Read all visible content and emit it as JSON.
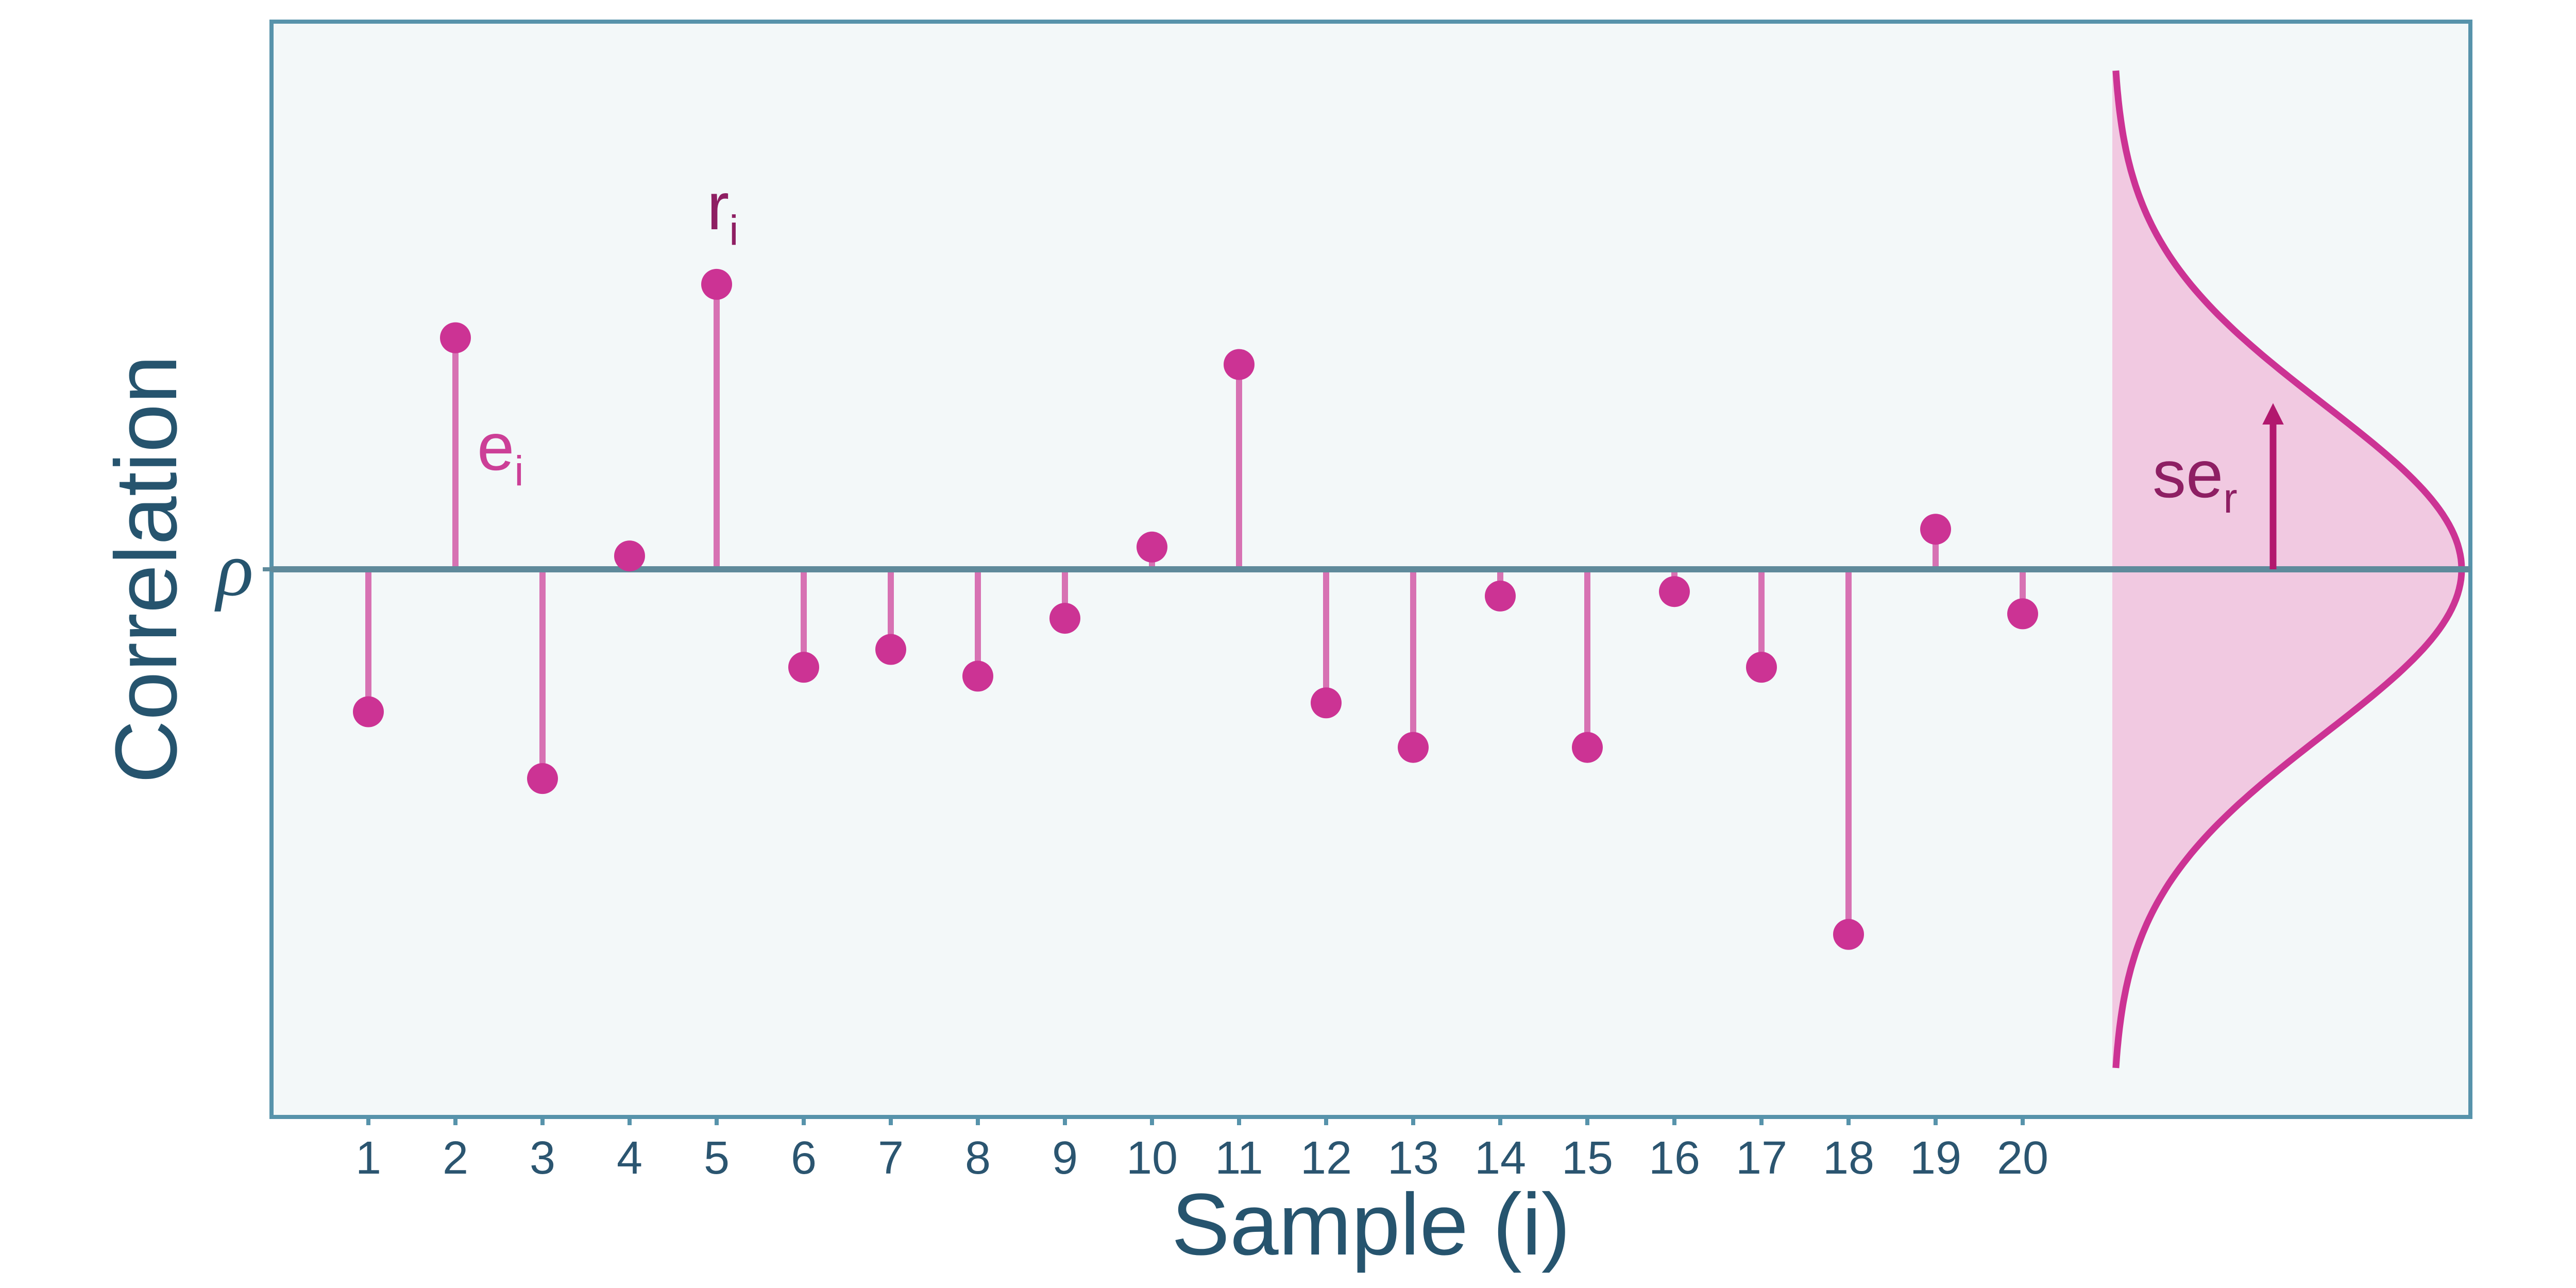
{
  "chart_data": {
    "type": "scatter",
    "style": "lollipop",
    "xlabel": "Sample (i)",
    "ylabel": "Correlation",
    "x_tick_labels": [
      "1",
      "2",
      "3",
      "4",
      "5",
      "6",
      "7",
      "8",
      "9",
      "10",
      "11",
      "12",
      "13",
      "14",
      "15",
      "16",
      "17",
      "18",
      "19",
      "20"
    ],
    "reference_line_label": "ρ",
    "deviations": [
      -0.32,
      0.52,
      -0.47,
      0.03,
      0.64,
      -0.22,
      -0.18,
      -0.24,
      -0.11,
      0.05,
      0.46,
      -0.3,
      -0.4,
      -0.06,
      -0.4,
      -0.05,
      -0.22,
      -0.82,
      0.09,
      -0.1
    ],
    "ylim": [
      -1.23,
      1.23
    ],
    "distribution": {
      "shape": "normal",
      "sd": 0.37,
      "extent": [
        -1.12,
        1.12
      ]
    },
    "annotations": {
      "e": {
        "base": "e",
        "sub": "i"
      },
      "r": {
        "base": "r",
        "sub": "i"
      },
      "se": {
        "base": "se",
        "sub": "r"
      }
    },
    "colors": {
      "background": "#f3f8f9",
      "frame": "#5793ab",
      "reference_line": "#5f8a9b",
      "stem": "#d772b3",
      "point": "#cc3394",
      "curve": "#cc3394",
      "curve_fill": "#f1c9e1",
      "arrow": "#b2186e",
      "text": "#26546e"
    }
  }
}
